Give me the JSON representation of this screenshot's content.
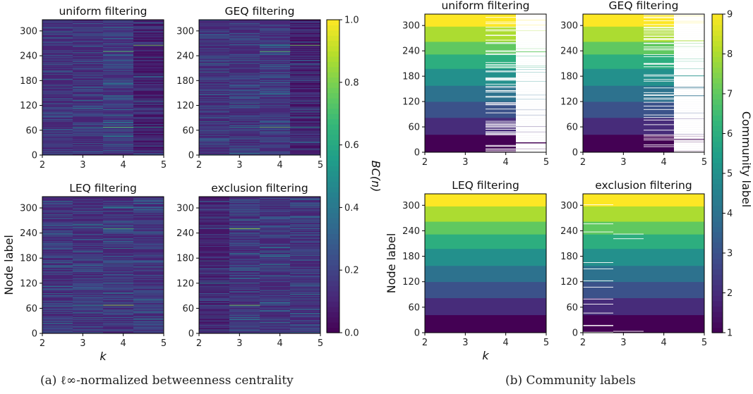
{
  "captions": {
    "a": "(a) ℓ∞-normalized betweenness centrality",
    "b": "(b) Community labels"
  },
  "chart_data": [
    {
      "type": "heatmap",
      "panel": "a",
      "ylabel": "Node label",
      "xlabel": "k",
      "x_ticks": [
        "2",
        "3",
        "4",
        "5"
      ],
      "y_ticks": [
        "0",
        "60",
        "120",
        "180",
        "240",
        "300"
      ],
      "xlim": [
        2,
        5
      ],
      "ylim": [
        0,
        327
      ],
      "colormap": "viridis",
      "colorbar": {
        "label": "BC(n)",
        "range": [
          0.0,
          1.0
        ],
        "ticks": [
          "0.0",
          "0.2",
          "0.4",
          "0.6",
          "0.8",
          "1.0"
        ]
      },
      "subplots": [
        {
          "title": "uniform filtering",
          "x_columns": [
            2,
            3,
            4,
            5
          ],
          "base": [
            0.1,
            0.1,
            0.11,
            0.04
          ],
          "highlights": [
            {
              "column": 2,
              "node": 250,
              "value": 0.75
            },
            {
              "column": 3,
              "node": 265,
              "value": 0.8
            },
            {
              "column": 4,
              "node": 222,
              "value": 0.85
            },
            {
              "column": 4,
              "node": 210,
              "value": 0.85
            },
            {
              "column": 1,
              "node": 67,
              "value": 0.5
            },
            {
              "column": 2,
              "node": 67,
              "value": 0.75
            },
            {
              "column": 3,
              "node": 67,
              "value": 0.55
            },
            {
              "column": 3,
              "node": 130,
              "value": 0.35
            },
            {
              "column": 4,
              "node": 62,
              "value": 0.45
            }
          ]
        },
        {
          "title": "GEQ filtering",
          "x_columns": [
            2,
            3,
            4,
            5
          ],
          "base": [
            0.1,
            0.1,
            0.11,
            0.04
          ],
          "highlights": [
            {
              "column": 2,
              "node": 250,
              "value": 0.75
            },
            {
              "column": 3,
              "node": 265,
              "value": 0.8
            },
            {
              "column": 4,
              "node": 222,
              "value": 0.85
            },
            {
              "column": 4,
              "node": 210,
              "value": 0.85
            },
            {
              "column": 1,
              "node": 67,
              "value": 0.5
            },
            {
              "column": 2,
              "node": 67,
              "value": 0.75
            },
            {
              "column": 3,
              "node": 67,
              "value": 0.55
            },
            {
              "column": 3,
              "node": 130,
              "value": 0.35
            },
            {
              "column": 4,
              "node": 62,
              "value": 0.45
            }
          ]
        },
        {
          "title": "LEQ filtering",
          "x_columns": [
            2,
            3,
            4,
            5
          ],
          "base": [
            0.1,
            0.1,
            0.1,
            0.1
          ],
          "highlights": [
            {
              "column": 2,
              "node": 250,
              "value": 0.7
            },
            {
              "column": 2,
              "node": 67,
              "value": 0.85
            },
            {
              "column": 1,
              "node": 67,
              "value": 0.5
            }
          ]
        },
        {
          "title": "exclusion filtering",
          "x_columns": [
            2,
            3,
            4,
            5
          ],
          "base": [
            0.06,
            0.1,
            0.1,
            0.1
          ],
          "highlights": [
            {
              "column": 1,
              "node": 250,
              "value": 0.85
            },
            {
              "column": 1,
              "node": 67,
              "value": 0.8
            },
            {
              "column": 3,
              "node": 250,
              "value": 0.35
            }
          ]
        }
      ]
    },
    {
      "type": "heatmap",
      "panel": "b",
      "ylabel": "Node label",
      "xlabel": "k",
      "x_ticks": [
        "2",
        "3",
        "4",
        "5"
      ],
      "y_ticks": [
        "0",
        "60",
        "120",
        "180",
        "240",
        "300"
      ],
      "xlim": [
        2,
        5
      ],
      "ylim": [
        0,
        327
      ],
      "colormap": "viridis",
      "colorbar": {
        "label": "Community label",
        "range": [
          1,
          9
        ],
        "ticks": [
          "1",
          "2",
          "3",
          "4",
          "5",
          "6",
          "7",
          "8",
          "9"
        ]
      },
      "community_bands": [
        {
          "label": 1,
          "from": 0,
          "to": 42
        },
        {
          "label": 2,
          "from": 42,
          "to": 82
        },
        {
          "label": 3,
          "from": 82,
          "to": 120
        },
        {
          "label": 4,
          "from": 120,
          "to": 158
        },
        {
          "label": 5,
          "from": 158,
          "to": 198
        },
        {
          "label": 6,
          "from": 198,
          "to": 232
        },
        {
          "label": 7,
          "from": 232,
          "to": 262
        },
        {
          "label": 8,
          "from": 262,
          "to": 298
        },
        {
          "label": 9,
          "from": 298,
          "to": 327
        }
      ],
      "subplots": [
        {
          "title": "uniform filtering",
          "column_coverage": [
            1.0,
            1.0,
            0.85,
            0.15
          ]
        },
        {
          "title": "GEQ filtering",
          "column_coverage": [
            1.0,
            1.0,
            0.85,
            0.2
          ]
        },
        {
          "title": "LEQ filtering",
          "column_coverage": [
            1.0,
            1.0,
            1.0,
            1.0
          ]
        },
        {
          "title": "exclusion filtering",
          "column_coverage": [
            0.97,
            0.97,
            1.0,
            1.0
          ]
        }
      ]
    }
  ]
}
